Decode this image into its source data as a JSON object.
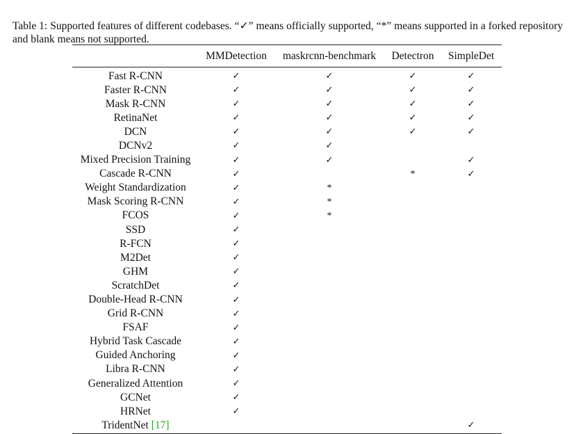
{
  "caption": "Table 1: Supported features of different codebases. “✓” means officially supported, “*” means supported in a forked repository and blank means not supported.",
  "columns": [
    "",
    "MMDetection",
    "maskrcnn-benchmark",
    "Detectron",
    "SimpleDet"
  ],
  "rows": [
    {
      "feature": "Fast R-CNN",
      "cells": [
        "✓",
        "✓",
        "✓",
        "✓"
      ]
    },
    {
      "feature": "Faster R-CNN",
      "cells": [
        "✓",
        "✓",
        "✓",
        "✓"
      ]
    },
    {
      "feature": "Mask R-CNN",
      "cells": [
        "✓",
        "✓",
        "✓",
        "✓"
      ]
    },
    {
      "feature": "RetinaNet",
      "cells": [
        "✓",
        "✓",
        "✓",
        "✓"
      ]
    },
    {
      "feature": "DCN",
      "cells": [
        "✓",
        "✓",
        "✓",
        "✓"
      ]
    },
    {
      "feature": "DCNv2",
      "cells": [
        "✓",
        "✓",
        "",
        ""
      ]
    },
    {
      "feature": "Mixed Precision Training",
      "cells": [
        "✓",
        "✓",
        "",
        "✓"
      ]
    },
    {
      "feature": "Cascade R-CNN",
      "cells": [
        "✓",
        "",
        "*",
        "✓"
      ]
    },
    {
      "feature": "Weight Standardization",
      "cells": [
        "✓",
        "*",
        "",
        ""
      ]
    },
    {
      "feature": "Mask Scoring R-CNN",
      "cells": [
        "✓",
        "*",
        "",
        ""
      ]
    },
    {
      "feature": "FCOS",
      "cells": [
        "✓",
        "*",
        "",
        ""
      ]
    },
    {
      "feature": "SSD",
      "cells": [
        "✓",
        "",
        "",
        ""
      ]
    },
    {
      "feature": "R-FCN",
      "cells": [
        "✓",
        "",
        "",
        ""
      ]
    },
    {
      "feature": "M2Det",
      "cells": [
        "✓",
        "",
        "",
        ""
      ]
    },
    {
      "feature": "GHM",
      "cells": [
        "✓",
        "",
        "",
        ""
      ]
    },
    {
      "feature": "ScratchDet",
      "cells": [
        "✓",
        "",
        "",
        ""
      ]
    },
    {
      "feature": "Double-Head R-CNN",
      "cells": [
        "✓",
        "",
        "",
        ""
      ]
    },
    {
      "feature": "Grid R-CNN",
      "cells": [
        "✓",
        "",
        "",
        ""
      ]
    },
    {
      "feature": "FSAF",
      "cells": [
        "✓",
        "",
        "",
        ""
      ]
    },
    {
      "feature": "Hybrid Task Cascade",
      "cells": [
        "✓",
        "",
        "",
        ""
      ]
    },
    {
      "feature": "Guided Anchoring",
      "cells": [
        "✓",
        "",
        "",
        ""
      ]
    },
    {
      "feature": "Libra R-CNN",
      "cells": [
        "✓",
        "",
        "",
        ""
      ]
    },
    {
      "feature": "Generalized Attention",
      "cells": [
        "✓",
        "",
        "",
        ""
      ]
    },
    {
      "feature": "GCNet",
      "cells": [
        "✓",
        "",
        "",
        ""
      ]
    },
    {
      "feature": "HRNet",
      "cells": [
        "✓",
        "",
        "",
        ""
      ]
    },
    {
      "feature": "TridentNet",
      "cite": "[17]",
      "cells": [
        "",
        "",
        "",
        "✓"
      ]
    }
  ],
  "colors": {
    "citation": "#22aa22"
  }
}
